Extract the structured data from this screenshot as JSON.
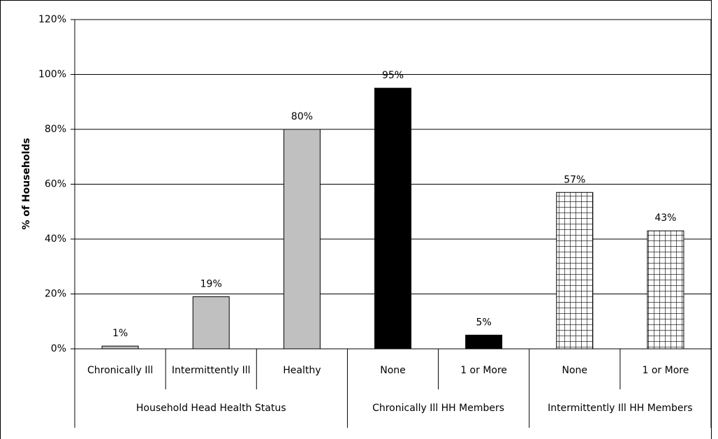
{
  "chart_data": {
    "type": "bar",
    "y_axis_label": "% of Households",
    "ylim": [
      0,
      120
    ],
    "yticks": [
      {
        "value": 0,
        "label": "0%"
      },
      {
        "value": 20,
        "label": "20%"
      },
      {
        "value": 40,
        "label": "40%"
      },
      {
        "value": 60,
        "label": "60%"
      },
      {
        "value": 80,
        "label": "80%"
      },
      {
        "value": 100,
        "label": "100%"
      },
      {
        "value": 120,
        "label": "120%"
      }
    ],
    "grid": true,
    "groups": [
      {
        "name": "Household Head Health Status",
        "color": "#c0c0c0",
        "pattern": "solid",
        "categories": [
          "Chronically Ill",
          "Intermittently Ill",
          "Healthy"
        ],
        "values": [
          1,
          19,
          80
        ],
        "value_labels": [
          "1%",
          "19%",
          "80%"
        ]
      },
      {
        "name": "Chronically Ill HH Members",
        "color": "#000000",
        "pattern": "solid",
        "categories": [
          "None",
          "1 or More"
        ],
        "values": [
          95,
          5
        ],
        "value_labels": [
          "95%",
          "5%"
        ]
      },
      {
        "name": "Intermittently Ill HH Members",
        "color": "#000000",
        "pattern": "grid",
        "categories": [
          "None",
          "1 or More"
        ],
        "values": [
          57,
          43
        ],
        "value_labels": [
          "57%",
          "43%"
        ]
      }
    ]
  }
}
